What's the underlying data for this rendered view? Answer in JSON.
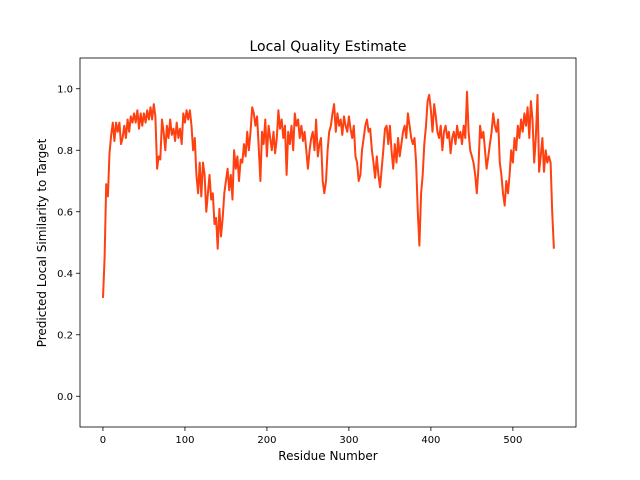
{
  "chart_data": {
    "type": "line",
    "title": "Local Quality Estimate",
    "xlabel": "Residue Number",
    "ylabel": "Predicted Local Similarity to Target",
    "xlim": [
      -28,
      577
    ],
    "ylim": [
      -0.1,
      1.1
    ],
    "xticks": [
      0,
      100,
      200,
      300,
      400,
      500
    ],
    "yticks": [
      0.0,
      0.2,
      0.4,
      0.6,
      0.8,
      1.0
    ],
    "ytick_labels": [
      "0.0",
      "0.2",
      "0.4",
      "0.6",
      "0.8",
      "1.0"
    ],
    "grid": false,
    "series": [
      {
        "color": "#ff4010",
        "points": [
          [
            0,
            0.32
          ],
          [
            2,
            0.45
          ],
          [
            4,
            0.69
          ],
          [
            6,
            0.65
          ],
          [
            8,
            0.79
          ],
          [
            10,
            0.85
          ],
          [
            12,
            0.89
          ],
          [
            14,
            0.83
          ],
          [
            16,
            0.89
          ],
          [
            18,
            0.86
          ],
          [
            20,
            0.89
          ],
          [
            22,
            0.82
          ],
          [
            24,
            0.84
          ],
          [
            26,
            0.88
          ],
          [
            28,
            0.84
          ],
          [
            30,
            0.9
          ],
          [
            32,
            0.86
          ],
          [
            34,
            0.91
          ],
          [
            36,
            0.89
          ],
          [
            38,
            0.92
          ],
          [
            40,
            0.89
          ],
          [
            42,
            0.93
          ],
          [
            44,
            0.87
          ],
          [
            46,
            0.92
          ],
          [
            48,
            0.88
          ],
          [
            50,
            0.92
          ],
          [
            52,
            0.89
          ],
          [
            54,
            0.93
          ],
          [
            56,
            0.9
          ],
          [
            58,
            0.94
          ],
          [
            60,
            0.9
          ],
          [
            62,
            0.95
          ],
          [
            64,
            0.91
          ],
          [
            66,
            0.74
          ],
          [
            68,
            0.78
          ],
          [
            70,
            0.77
          ],
          [
            72,
            0.9
          ],
          [
            74,
            0.86
          ],
          [
            76,
            0.8
          ],
          [
            78,
            0.88
          ],
          [
            80,
            0.84
          ],
          [
            82,
            0.9
          ],
          [
            84,
            0.85
          ],
          [
            86,
            0.87
          ],
          [
            88,
            0.83
          ],
          [
            90,
            0.89
          ],
          [
            92,
            0.84
          ],
          [
            94,
            0.87
          ],
          [
            96,
            0.82
          ],
          [
            98,
            0.92
          ],
          [
            100,
            0.89
          ],
          [
            102,
            0.93
          ],
          [
            104,
            0.9
          ],
          [
            106,
            0.93
          ],
          [
            108,
            0.88
          ],
          [
            110,
            0.8
          ],
          [
            112,
            0.84
          ],
          [
            114,
            0.72
          ],
          [
            116,
            0.66
          ],
          [
            118,
            0.76
          ],
          [
            120,
            0.65
          ],
          [
            122,
            0.76
          ],
          [
            124,
            0.72
          ],
          [
            126,
            0.6
          ],
          [
            128,
            0.66
          ],
          [
            130,
            0.72
          ],
          [
            132,
            0.64
          ],
          [
            134,
            0.66
          ],
          [
            136,
            0.56
          ],
          [
            138,
            0.58
          ],
          [
            140,
            0.48
          ],
          [
            142,
            0.61
          ],
          [
            144,
            0.52
          ],
          [
            146,
            0.58
          ],
          [
            148,
            0.66
          ],
          [
            150,
            0.7
          ],
          [
            152,
            0.74
          ],
          [
            154,
            0.67
          ],
          [
            156,
            0.72
          ],
          [
            158,
            0.64
          ],
          [
            160,
            0.8
          ],
          [
            162,
            0.74
          ],
          [
            164,
            0.78
          ],
          [
            166,
            0.7
          ],
          [
            168,
            0.77
          ],
          [
            170,
            0.76
          ],
          [
            172,
            0.82
          ],
          [
            174,
            0.78
          ],
          [
            176,
            0.86
          ],
          [
            178,
            0.8
          ],
          [
            180,
            0.86
          ],
          [
            182,
            0.94
          ],
          [
            184,
            0.92
          ],
          [
            186,
            0.88
          ],
          [
            188,
            0.91
          ],
          [
            190,
            0.81
          ],
          [
            192,
            0.7
          ],
          [
            194,
            0.86
          ],
          [
            196,
            0.82
          ],
          [
            198,
            0.9
          ],
          [
            200,
            0.78
          ],
          [
            202,
            0.88
          ],
          [
            204,
            0.84
          ],
          [
            206,
            0.8
          ],
          [
            208,
            0.86
          ],
          [
            210,
            0.79
          ],
          [
            212,
            0.84
          ],
          [
            214,
            0.93
          ],
          [
            216,
            0.87
          ],
          [
            218,
            0.9
          ],
          [
            220,
            0.84
          ],
          [
            222,
            0.88
          ],
          [
            224,
            0.72
          ],
          [
            226,
            0.86
          ],
          [
            228,
            0.82
          ],
          [
            230,
            0.88
          ],
          [
            232,
            0.8
          ],
          [
            234,
            0.92
          ],
          [
            236,
            0.88
          ],
          [
            238,
            0.9
          ],
          [
            240,
            0.84
          ],
          [
            242,
            0.88
          ],
          [
            244,
            0.83
          ],
          [
            246,
            0.86
          ],
          [
            248,
            0.8
          ],
          [
            250,
            0.74
          ],
          [
            252,
            0.8
          ],
          [
            254,
            0.84
          ],
          [
            256,
            0.86
          ],
          [
            258,
            0.8
          ],
          [
            260,
            0.9
          ],
          [
            262,
            0.78
          ],
          [
            264,
            0.82
          ],
          [
            266,
            0.84
          ],
          [
            268,
            0.7
          ],
          [
            270,
            0.66
          ],
          [
            272,
            0.7
          ],
          [
            274,
            0.8
          ],
          [
            276,
            0.86
          ],
          [
            278,
            0.88
          ],
          [
            280,
            0.92
          ],
          [
            282,
            0.95
          ],
          [
            284,
            0.86
          ],
          [
            286,
            0.92
          ],
          [
            288,
            0.88
          ],
          [
            290,
            0.9
          ],
          [
            292,
            0.85
          ],
          [
            294,
            0.91
          ],
          [
            296,
            0.88
          ],
          [
            298,
            0.86
          ],
          [
            300,
            0.91
          ],
          [
            302,
            0.87
          ],
          [
            304,
            0.84
          ],
          [
            306,
            0.88
          ],
          [
            308,
            0.78
          ],
          [
            310,
            0.76
          ],
          [
            312,
            0.7
          ],
          [
            314,
            0.72
          ],
          [
            316,
            0.8
          ],
          [
            318,
            0.84
          ],
          [
            320,
            0.88
          ],
          [
            322,
            0.9
          ],
          [
            324,
            0.86
          ],
          [
            326,
            0.87
          ],
          [
            328,
            0.8
          ],
          [
            330,
            0.76
          ],
          [
            332,
            0.71
          ],
          [
            334,
            0.78
          ],
          [
            336,
            0.72
          ],
          [
            338,
            0.68
          ],
          [
            340,
            0.74
          ],
          [
            342,
            0.8
          ],
          [
            344,
            0.87
          ],
          [
            346,
            0.88
          ],
          [
            348,
            0.82
          ],
          [
            350,
            0.88
          ],
          [
            352,
            0.8
          ],
          [
            354,
            0.74
          ],
          [
            356,
            0.82
          ],
          [
            358,
            0.76
          ],
          [
            360,
            0.84
          ],
          [
            362,
            0.78
          ],
          [
            364,
            0.82
          ],
          [
            366,
            0.86
          ],
          [
            368,
            0.88
          ],
          [
            370,
            0.84
          ],
          [
            372,
            0.92
          ],
          [
            374,
            0.88
          ],
          [
            376,
            0.84
          ],
          [
            378,
            0.82
          ],
          [
            380,
            0.84
          ],
          [
            382,
            0.76
          ],
          [
            384,
            0.6
          ],
          [
            386,
            0.49
          ],
          [
            388,
            0.66
          ],
          [
            390,
            0.72
          ],
          [
            392,
            0.82
          ],
          [
            394,
            0.88
          ],
          [
            396,
            0.96
          ],
          [
            398,
            0.98
          ],
          [
            400,
            0.93
          ],
          [
            402,
            0.86
          ],
          [
            404,
            0.95
          ],
          [
            406,
            0.91
          ],
          [
            408,
            0.86
          ],
          [
            410,
            0.84
          ],
          [
            412,
            0.88
          ],
          [
            414,
            0.8
          ],
          [
            416,
            0.86
          ],
          [
            418,
            0.88
          ],
          [
            420,
            0.84
          ],
          [
            422,
            0.86
          ],
          [
            424,
            0.79
          ],
          [
            426,
            0.84
          ],
          [
            428,
            0.86
          ],
          [
            430,
            0.82
          ],
          [
            432,
            0.88
          ],
          [
            434,
            0.84
          ],
          [
            436,
            0.86
          ],
          [
            438,
            0.82
          ],
          [
            440,
            0.88
          ],
          [
            442,
            0.84
          ],
          [
            444,
            0.99
          ],
          [
            446,
            0.86
          ],
          [
            448,
            0.8
          ],
          [
            450,
            0.78
          ],
          [
            452,
            0.76
          ],
          [
            454,
            0.72
          ],
          [
            456,
            0.66
          ],
          [
            458,
            0.74
          ],
          [
            460,
            0.88
          ],
          [
            462,
            0.84
          ],
          [
            464,
            0.86
          ],
          [
            466,
            0.8
          ],
          [
            468,
            0.74
          ],
          [
            470,
            0.78
          ],
          [
            472,
            0.82
          ],
          [
            474,
            0.86
          ],
          [
            476,
            0.92
          ],
          [
            478,
            0.88
          ],
          [
            480,
            0.86
          ],
          [
            482,
            0.9
          ],
          [
            484,
            0.76
          ],
          [
            486,
            0.72
          ],
          [
            488,
            0.66
          ],
          [
            490,
            0.62
          ],
          [
            492,
            0.7
          ],
          [
            494,
            0.66
          ],
          [
            496,
            0.72
          ],
          [
            498,
            0.8
          ],
          [
            500,
            0.76
          ],
          [
            502,
            0.84
          ],
          [
            504,
            0.8
          ],
          [
            506,
            0.88
          ],
          [
            508,
            0.84
          ],
          [
            510,
            0.9
          ],
          [
            512,
            0.86
          ],
          [
            514,
            0.92
          ],
          [
            516,
            0.88
          ],
          [
            518,
            0.94
          ],
          [
            520,
            0.84
          ],
          [
            522,
            0.96
          ],
          [
            524,
            0.9
          ],
          [
            526,
            0.76
          ],
          [
            528,
            0.84
          ],
          [
            530,
            0.98
          ],
          [
            532,
            0.73
          ],
          [
            534,
            0.78
          ],
          [
            536,
            0.84
          ],
          [
            538,
            0.73
          ],
          [
            540,
            0.8
          ],
          [
            542,
            0.76
          ],
          [
            544,
            0.78
          ],
          [
            546,
            0.76
          ],
          [
            548,
            0.6
          ],
          [
            550,
            0.48
          ]
        ]
      }
    ]
  }
}
